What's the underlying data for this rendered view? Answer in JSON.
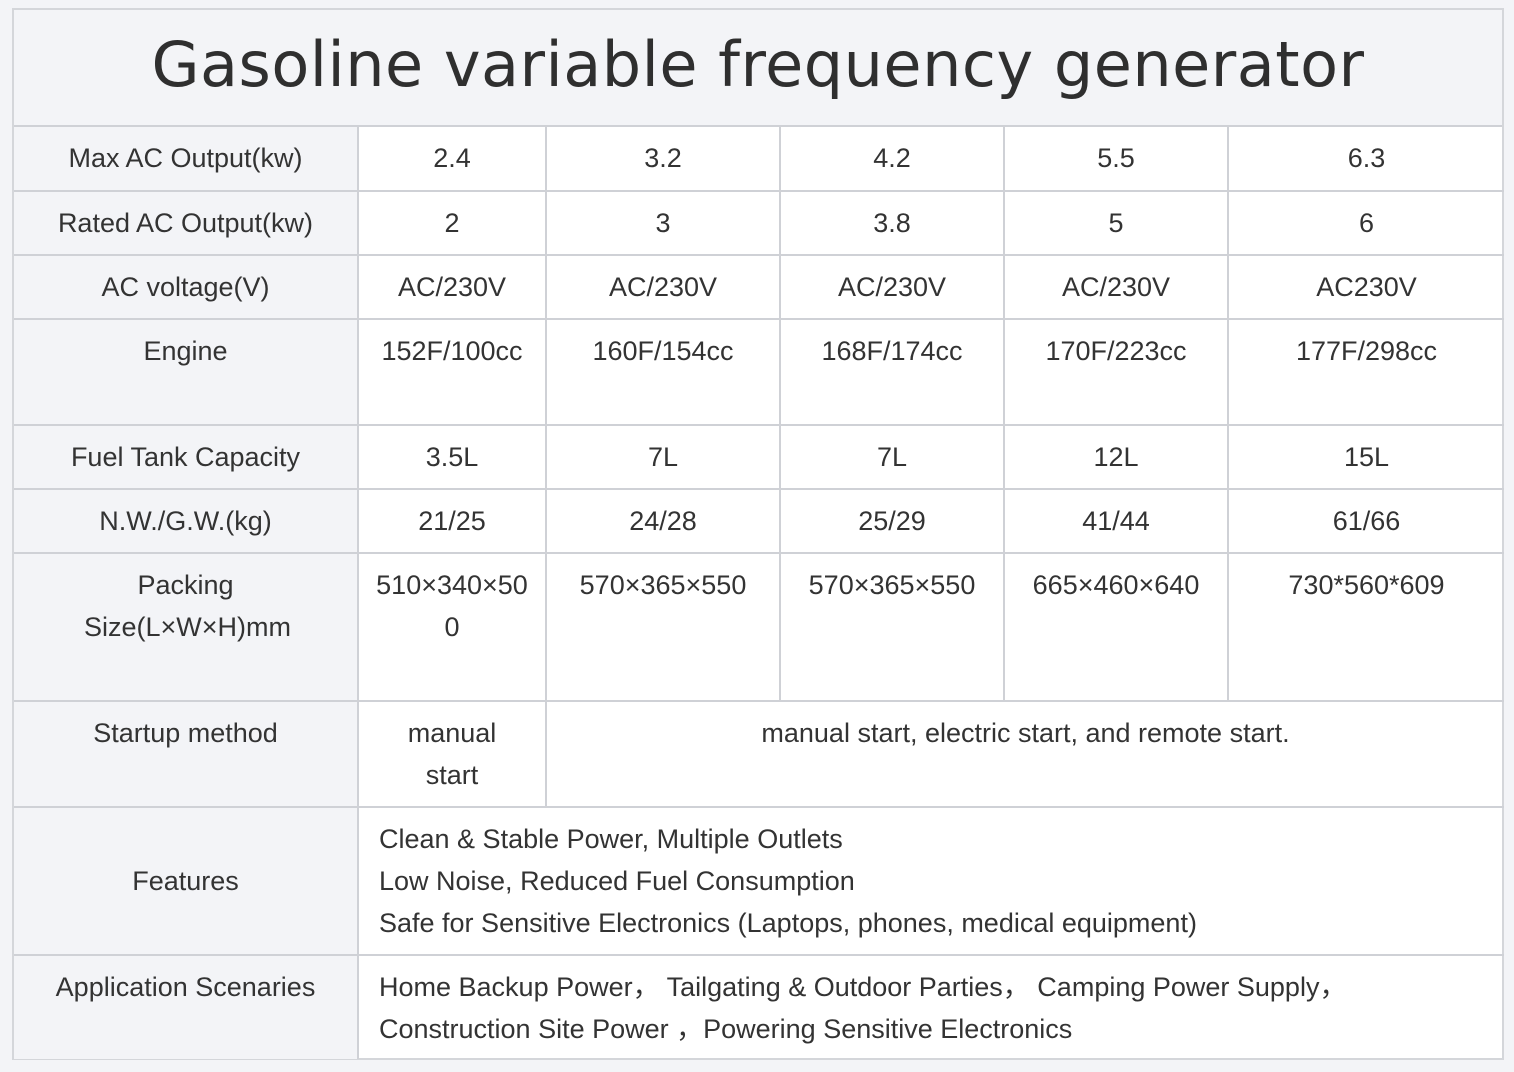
{
  "title": "Gasoline variable frequency generator",
  "rows": [
    {
      "label": "Max AC Output(kw)",
      "values": [
        "2.4",
        "3.2",
        "4.2",
        "5.5",
        "6.3"
      ]
    },
    {
      "label": "Rated AC Output(kw)",
      "values": [
        "2",
        "3",
        "3.8",
        "5",
        "6"
      ]
    },
    {
      "label": "AC voltage(V)",
      "values": [
        "AC/230V",
        "AC/230V",
        "AC/230V",
        "AC/230V",
        "AC230V"
      ]
    },
    {
      "label": "Engine",
      "values": [
        "152F/100cc",
        "160F/154cc",
        "168F/174cc",
        "170F/223cc",
        "177F/298cc"
      ]
    },
    {
      "label": "Fuel Tank Capacity",
      "values": [
        "3.5L",
        "7L",
        "7L",
        "12L",
        "15L"
      ]
    },
    {
      "label": "N.W./G.W.(kg)",
      "values": [
        "21/25",
        "24/28",
        "25/29",
        "41/44",
        "61/66"
      ]
    },
    {
      "label": "Packing Size(L×W×H)mm",
      "values": [
        "510×340×500",
        "570×365×550",
        "570×365×550",
        "665×460×640",
        "730*560*609"
      ]
    }
  ],
  "startup": {
    "label": "Startup method",
    "first": "manual start",
    "rest": "manual start, electric start, and remote start."
  },
  "features": {
    "label": "Features",
    "lines": [
      "Clean & Stable Power, Multiple Outlets",
      "Low Noise, Reduced Fuel Consumption",
      "Safe for Sensitive Electronics (Laptops, phones, medical equipment)"
    ]
  },
  "applications": {
    "label": "Application Scenaries",
    "lines": [
      "Home Backup Power， Tailgating & Outdoor Parties， Camping Power Supply，",
      "Construction Site Power ，Powering Sensitive Electronics"
    ]
  }
}
